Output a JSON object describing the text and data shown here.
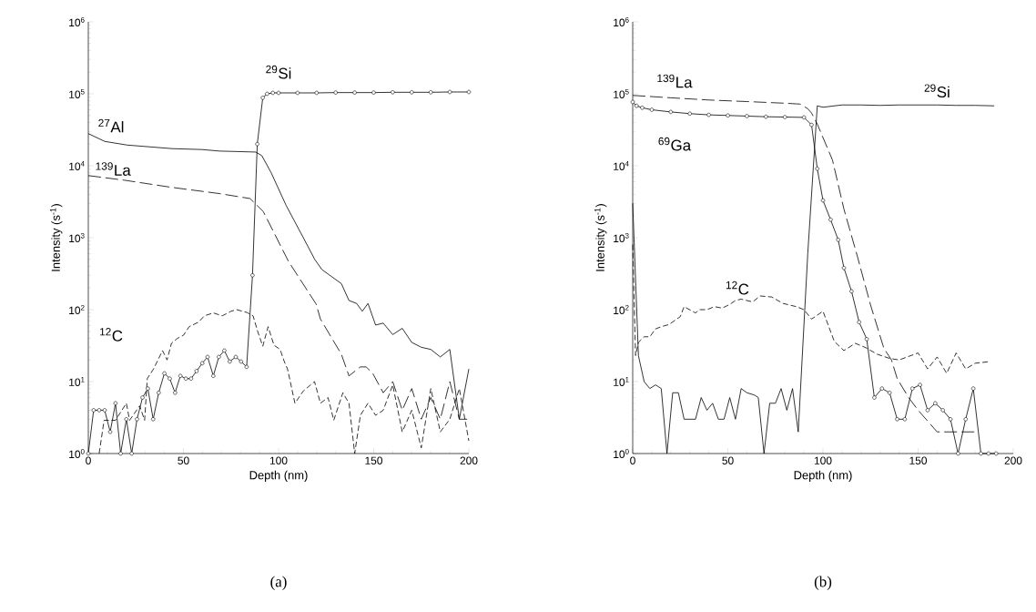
{
  "chart_data": [
    {
      "type": "line",
      "log": "y",
      "xlabel": "Depth (nm)",
      "ylabel": "Intensity (s$^{-1}$)",
      "annotations": [
        "(a)"
      ],
      "xlim": [
        0,
        200
      ],
      "xticks": [
        0,
        50,
        100,
        150,
        200
      ],
      "ylim": [
        1,
        1000000
      ],
      "yticks": [
        {
          "value": 1,
          "label": "10$^{0}$"
        },
        {
          "value": 10,
          "label": "10$^{1}$"
        },
        {
          "value": 100,
          "label": "10$^{2}$"
        },
        {
          "value": 1000,
          "label": "10$^{3}$"
        },
        {
          "value": 10000,
          "label": "10$^{4}$"
        },
        {
          "value": 100000,
          "label": "10$^{5}$"
        },
        {
          "value": 1000000,
          "label": "10$^{6}$"
        }
      ],
      "series": [
        {
          "name": "$^{29}$Si",
          "color": "#000000",
          "marker": "circle",
          "line_style": "solid",
          "x": [
            0,
            2.8,
            5.7,
            8.6,
            11.5,
            14.3,
            17,
            20,
            22.8,
            25.6,
            28.5,
            31.3,
            34.1,
            37,
            40,
            42.8,
            45.6,
            48.4,
            51.3,
            54,
            56.9,
            59.9,
            62.7,
            65.7,
            68.6,
            71.5,
            74.3,
            77.5,
            80.3,
            83.2,
            86.3,
            88.8,
            91.7,
            94,
            97,
            100,
            110,
            120,
            130,
            140,
            150,
            160,
            170,
            180,
            190,
            200
          ],
          "values": [
            1,
            4,
            4,
            4,
            2,
            5,
            1,
            3,
            1,
            3,
            6,
            8,
            3,
            7,
            13,
            11,
            7,
            12,
            11,
            11,
            14,
            18,
            22,
            12,
            22,
            27,
            19,
            22,
            19,
            16,
            300,
            20000,
            88000,
            100000,
            103000,
            103000,
            103000,
            103000,
            104000,
            104000,
            104000,
            105000,
            105000,
            105000,
            106000,
            106000
          ]
        },
        {
          "name": "$^{27}$Al",
          "color": "#000000",
          "marker": "none",
          "line_style": "solid",
          "x": [
            0,
            8.6,
            20.4,
            44,
            59.7,
            69,
            88,
            91.2,
            96,
            104,
            113,
            119,
            122.8,
            133,
            137,
            141,
            144,
            147,
            151,
            155,
            160,
            165,
            170,
            175,
            180,
            185,
            190,
            195,
            200
          ],
          "values": [
            28000,
            21800,
            19400,
            17300,
            16800,
            16000,
            15500,
            13800,
            8100,
            2800,
            1000,
            500,
            360,
            230,
            134,
            122,
            95,
            122,
            61,
            65,
            45,
            55,
            35,
            30,
            28,
            22,
            28,
            3,
            15
          ]
        },
        {
          "name": "$^{139}$La",
          "color": "#000000",
          "marker": "none",
          "line_style": "dashed",
          "x": [
            0,
            18.9,
            44,
            69,
            85,
            92,
            105,
            108.6,
            119.7,
            122,
            133,
            137,
            143,
            146,
            149.5,
            155,
            160,
            165,
            170,
            175,
            180,
            185,
            190,
            195,
            200
          ],
          "values": [
            7300,
            6300,
            5000,
            4100,
            3500,
            2300,
            480,
            340,
            120,
            74,
            24,
            12,
            16,
            16,
            13,
            7,
            10,
            4,
            8,
            3,
            6,
            3,
            10,
            3,
            3
          ]
        },
        {
          "name": "$^{12}$C",
          "color": "#000000",
          "marker": "none",
          "line_style": "dashed",
          "x": [
            5.7,
            8.3,
            14.3,
            20,
            21.7,
            27,
            29.6,
            31,
            34.3,
            39,
            41.4,
            43.7,
            46.9,
            50,
            53,
            57.9,
            61,
            65.7,
            70.4,
            75,
            78,
            83.5,
            86.6,
            89,
            91.7,
            94.5,
            97.6,
            100.8,
            103,
            104.7,
            108.6,
            113,
            118.9,
            122,
            126,
            129,
            133.8,
            137,
            140,
            143,
            147,
            151,
            155,
            160,
            165,
            170,
            175,
            180,
            185,
            190,
            195,
            200
          ],
          "values": [
            1,
            2.9,
            2.9,
            5,
            2.9,
            4.6,
            2.9,
            11,
            15,
            27,
            20,
            34,
            40,
            44,
            58,
            67,
            82,
            90,
            82,
            95,
            100,
            91,
            82,
            50,
            31,
            58,
            32,
            28,
            19,
            15,
            5,
            7.4,
            10,
            5,
            6,
            2.9,
            7,
            5,
            1,
            3.4,
            5,
            3.4,
            4,
            9,
            2,
            4,
            1.2,
            8,
            2,
            3,
            8,
            1.5
          ]
        }
      ]
    },
    {
      "type": "line",
      "log": "y",
      "xlabel": "Depth (nm)",
      "ylabel": "Intensity (s$^{-1}$)",
      "annotations": [
        "(b)"
      ],
      "xlim": [
        0,
        200
      ],
      "xticks": [
        0,
        50,
        100,
        150,
        200
      ],
      "ylim": [
        1,
        1000000
      ],
      "yticks": [
        {
          "value": 1,
          "label": "10$^{0}$"
        },
        {
          "value": 10,
          "label": "10$^{1}$"
        },
        {
          "value": 100,
          "label": "10$^{2}$"
        },
        {
          "value": 1000,
          "label": "10$^{3}$"
        },
        {
          "value": 10000,
          "label": "10$^{4}$"
        },
        {
          "value": 100000,
          "label": "10$^{5}$"
        },
        {
          "value": 1000000,
          "label": "10$^{6}$"
        }
      ],
      "series": [
        {
          "name": "$^{29}$Si",
          "color": "#000000",
          "marker": "none",
          "line_style": "solid",
          "x": [
            0,
            3,
            6,
            9,
            12,
            15,
            18,
            21,
            24,
            27,
            33,
            36,
            39,
            42,
            45,
            48,
            51,
            54,
            57,
            60,
            64,
            66,
            69,
            72,
            75,
            78,
            81,
            84,
            87,
            92,
            97,
            100,
            110,
            120,
            130,
            140,
            150,
            160,
            170,
            180,
            190
          ],
          "values": [
            3000,
            23,
            10,
            8,
            9,
            8,
            1,
            7,
            7,
            3,
            3,
            6,
            4,
            5,
            3,
            3,
            6,
            3,
            8,
            7,
            6.5,
            6,
            1,
            5,
            5,
            8,
            4,
            8,
            2,
            600,
            68000,
            65000,
            70000,
            70000,
            69000,
            70000,
            70000,
            70000,
            69000,
            69000,
            68000
          ]
        },
        {
          "name": "$^{69}$Ga",
          "color": "#000000",
          "marker": "circle",
          "line_style": "solid",
          "x": [
            0,
            2,
            5,
            10,
            20,
            30,
            40,
            50,
            60,
            70,
            80,
            90,
            94,
            97,
            100,
            104,
            108,
            111,
            115,
            119,
            123,
            127,
            131,
            135,
            139,
            143,
            147,
            151,
            155,
            159,
            163,
            167,
            171,
            175,
            179,
            183,
            187,
            191
          ],
          "values": [
            77000,
            68000,
            64000,
            60000,
            56000,
            53000,
            51000,
            50000,
            49000,
            48000,
            47500,
            47000,
            37000,
            9100,
            3300,
            1780,
            935,
            380,
            180,
            67,
            39,
            6,
            8,
            7,
            3,
            3,
            8,
            9,
            4,
            5,
            4,
            3,
            1,
            3,
            8,
            1,
            1,
            1
          ]
        },
        {
          "name": "$^{139}$La",
          "color": "#000000",
          "marker": "none",
          "line_style": "dashed",
          "x": [
            0,
            20,
            40,
            60,
            80,
            88,
            92,
            94,
            97,
            105,
            111,
            118,
            125,
            132,
            136,
            139,
            145,
            150,
            160,
            170,
            180
          ],
          "values": [
            95000,
            88000,
            82000,
            78000,
            74000,
            72000,
            62000,
            54000,
            38000,
            12000,
            2500,
            560,
            116,
            29,
            20,
            11,
            6,
            4,
            2,
            2,
            2
          ]
        },
        {
          "name": "$^{12}$C",
          "color": "#000000",
          "marker": "none",
          "line_style": "dashed",
          "x": [
            0,
            1.5,
            3,
            6,
            9,
            12,
            15,
            19,
            25,
            27,
            33,
            35,
            39,
            43,
            47,
            51,
            54,
            57,
            63,
            67,
            73,
            79,
            86,
            90,
            94,
            100,
            106,
            111,
            117,
            122,
            128.5,
            135,
            140,
            150,
            155,
            160,
            165,
            170,
            175,
            180,
            188
          ],
          "values": [
            800,
            23,
            35,
            42,
            42,
            54,
            58,
            62,
            80,
            110,
            90,
            100,
            100,
            110,
            105,
            118,
            134,
            140,
            128,
            155,
            150,
            122,
            110,
            100,
            74,
            95,
            36,
            27,
            34,
            30,
            24,
            21,
            20,
            25,
            15,
            22,
            13,
            25,
            15,
            18,
            19
          ]
        }
      ]
    }
  ]
}
